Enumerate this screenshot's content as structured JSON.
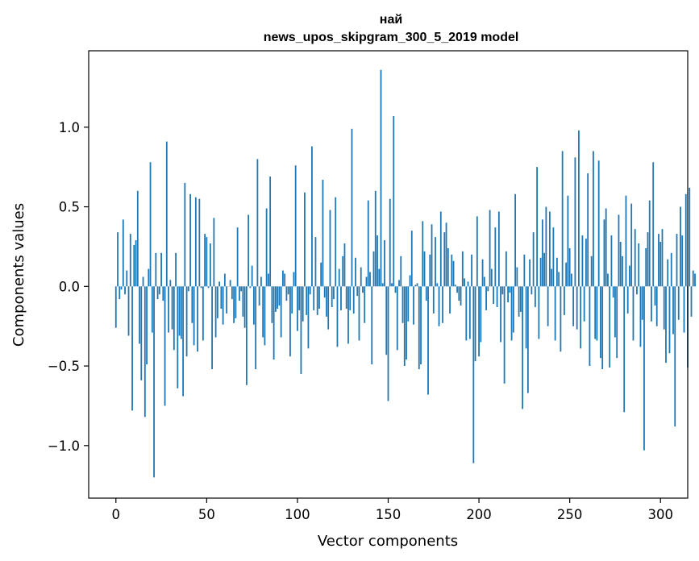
{
  "chart_data": {
    "type": "bar",
    "title": "най",
    "subtitle": "news_upos_skipgram_300_5_2019 model",
    "xlabel": "Vector components",
    "ylabel": "Components values",
    "xlim": [
      -15,
      315
    ],
    "ylim": [
      -1.33,
      1.48
    ],
    "xticks": [
      0,
      50,
      100,
      150,
      200,
      250,
      300
    ],
    "yticks": [
      -1.0,
      -0.5,
      0.0,
      0.5,
      1.0
    ],
    "ytick_labels": [
      "−1.0",
      "−0.5",
      "0.0",
      "0.5",
      "1.0"
    ],
    "bar_color": "#1f77b4",
    "grid": false,
    "values": [
      -0.26,
      0.34,
      -0.08,
      -0.02,
      0.42,
      -0.05,
      0.1,
      -0.31,
      0.33,
      -0.78,
      0.26,
      0.29,
      0.6,
      -0.36,
      -0.59,
      0.06,
      -0.82,
      -0.49,
      0.11,
      0.78,
      -0.29,
      -1.2,
      0.21,
      -0.08,
      -0.05,
      0.21,
      -0.09,
      -0.75,
      0.91,
      -0.29,
      0.04,
      -0.27,
      -0.4,
      0.21,
      -0.64,
      -0.31,
      -0.33,
      -0.69,
      0.65,
      -0.44,
      -0.03,
      0.58,
      -0.23,
      -0.37,
      0.56,
      -0.41,
      0.55,
      -0.01,
      -0.34,
      0.33,
      0.31,
      -0.01,
      0.27,
      -0.52,
      0.43,
      -0.32,
      -0.2,
      0.03,
      -0.14,
      -0.24,
      0.08,
      -0.17,
      0.0,
      0.04,
      -0.08,
      -0.23,
      -0.2,
      0.37,
      -0.09,
      -0.03,
      -0.19,
      -0.26,
      -0.62,
      0.45,
      -0.01,
      0.13,
      -0.24,
      -0.52,
      0.8,
      -0.12,
      0.06,
      -0.32,
      -0.37,
      0.49,
      0.08,
      0.69,
      -0.23,
      -0.46,
      -0.16,
      -0.14,
      -0.12,
      -0.32,
      0.1,
      0.08,
      -0.09,
      -0.05,
      -0.44,
      -0.17,
      0.09,
      0.76,
      -0.28,
      -0.15,
      -0.55,
      -0.22,
      0.59,
      -0.18,
      -0.39,
      -0.05,
      0.88,
      -0.15,
      0.31,
      -0.18,
      -0.14,
      0.15,
      0.67,
      -0.07,
      -0.19,
      -0.27,
      0.48,
      -0.13,
      -0.08,
      0.56,
      -0.38,
      0.11,
      -0.15,
      0.19,
      0.27,
      -0.14,
      -0.36,
      -0.15,
      0.99,
      -0.17,
      0.18,
      -0.06,
      -0.34,
      0.12,
      -0.04,
      -0.23,
      0.06,
      0.54,
      0.09,
      -0.49,
      0.22,
      0.6,
      0.32,
      0.11,
      1.36,
      0.02,
      0.29,
      -0.43,
      -0.72,
      0.55,
      0.02,
      1.07,
      -0.04,
      -0.4,
      0.04,
      0.19,
      -0.23,
      -0.5,
      -0.46,
      -0.22,
      0.07,
      0.35,
      -0.24,
      0.01,
      0.02,
      -0.52,
      -0.49,
      0.41,
      0.22,
      -0.09,
      -0.68,
      0.2,
      0.39,
      -0.17,
      0.31,
      0.02,
      -0.25,
      0.47,
      -0.23,
      0.34,
      0.4,
      0.24,
      -0.17,
      0.2,
      0.16,
      0.01,
      -0.04,
      -0.09,
      -0.12,
      0.22,
      0.05,
      -0.34,
      0.03,
      -0.33,
      0.2,
      -1.11,
      -0.47,
      0.44,
      -0.44,
      -0.35,
      0.17,
      0.06,
      -0.15,
      -0.03,
      0.48,
      0.11,
      -0.11,
      0.37,
      -0.13,
      0.47,
      -0.35,
      -0.05,
      -0.61,
      0.22,
      -0.1,
      -0.04,
      -0.34,
      -0.29,
      0.58,
      0.12,
      -0.19,
      -0.16,
      -0.77,
      0.2,
      -0.39,
      -0.67,
      0.17,
      -0.05,
      0.34,
      -0.13,
      0.75,
      -0.33,
      0.18,
      0.42,
      0.21,
      0.5,
      -0.25,
      0.47,
      0.11,
      0.37,
      -0.34,
      0.18,
      0.09,
      -0.41,
      0.85,
      -0.18,
      0.15,
      0.57,
      0.24,
      0.08,
      -0.25,
      0.81,
      -0.27,
      0.98,
      -0.39,
      0.32,
      -0.22,
      0.3,
      0.71,
      -0.5,
      0.19,
      0.85,
      -0.33,
      -0.34,
      0.79,
      -0.45,
      -0.52,
      0.42,
      0.49,
      0.08,
      -0.51,
      0.32,
      -0.07,
      -0.32,
      -0.45,
      0.45,
      0.28,
      0.19,
      -0.79,
      0.57,
      -0.17,
      0.13,
      0.52,
      -0.34,
      0.36,
      -0.05,
      0.27,
      -0.38,
      -0.21,
      -1.03,
      0.24,
      0.34,
      0.54,
      -0.22,
      0.78,
      -0.12,
      -0.25,
      0.33,
      0.28,
      0.36,
      -0.27,
      -0.48,
      0.17,
      -0.42,
      0.21,
      -0.3,
      -0.88,
      0.33,
      -0.21,
      0.5,
      0.32,
      -0.29,
      0.58,
      -0.51,
      0.62,
      -0.19,
      0.1,
      0.08
    ]
  }
}
